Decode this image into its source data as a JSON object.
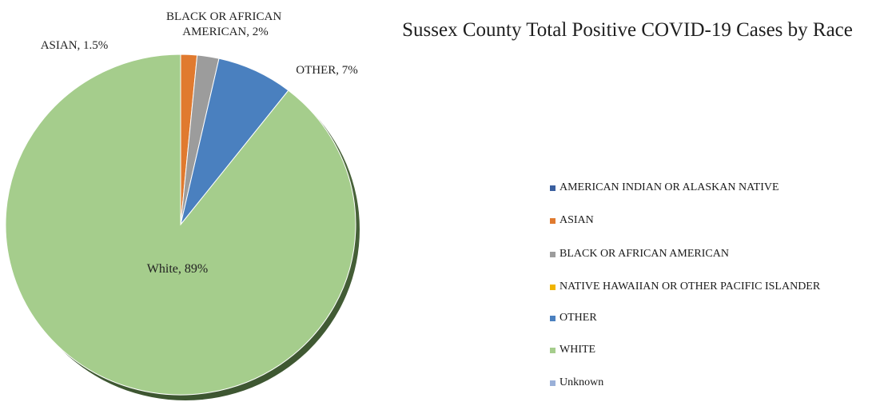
{
  "chart_data": {
    "type": "pie",
    "title": "Sussex County Total Positive COVID-19 Cases by Race",
    "series": [
      {
        "name": "AMERICAN INDIAN OR ALASKAN NATIVE",
        "value": 0,
        "color": "#3a5f9f"
      },
      {
        "name": "ASIAN",
        "value": 1.5,
        "color": "#e07a2f",
        "data_label": "ASIAN, 1.5%"
      },
      {
        "name": "BLACK OR AFRICAN AMERICAN",
        "value": 2,
        "color": "#9c9c9c",
        "data_label": "BLACK OR AFRICAN AMERICAN, 2%"
      },
      {
        "name": "NATIVE HAWAIIAN OR OTHER PACIFIC ISLANDER",
        "value": 0,
        "color": "#f0b400"
      },
      {
        "name": "OTHER",
        "value": 7,
        "color": "#4a80bf",
        "data_label": "OTHER, 7%"
      },
      {
        "name": "WHITE",
        "value": 89,
        "color": "#a5cd8c",
        "data_label": "White, 89%"
      },
      {
        "name": "Unknown",
        "value": 0,
        "color": "#9ab0d8"
      }
    ],
    "legend_position": "right"
  }
}
